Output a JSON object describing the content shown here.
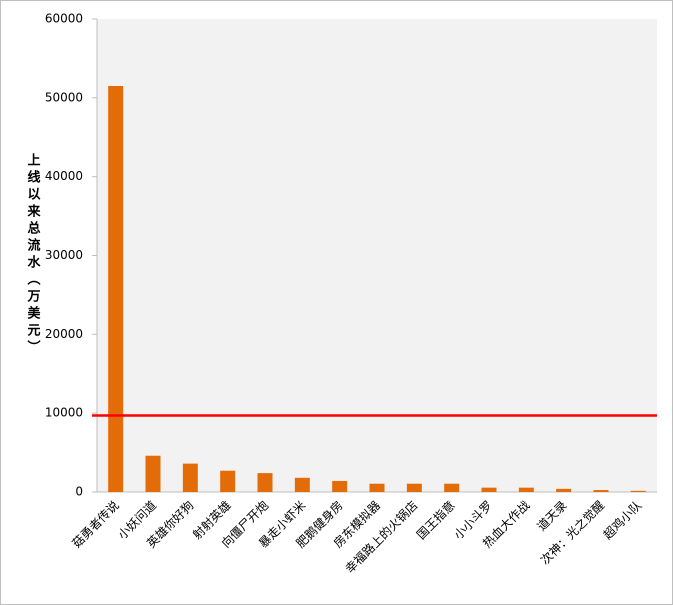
{
  "chart_data": {
    "type": "bar",
    "y_label": "上线以来总流水（万美元）",
    "categories": [
      "菇勇者传说",
      "小妖问道",
      "英雄你好狗",
      "射射英雄",
      "向僵尸开炮",
      "暴走小虾米",
      "肥鹅健身房",
      "房东模拟器",
      "幸福路上的火锅店",
      "国王指意",
      "小小斗罗",
      "热血大作战",
      "道天录",
      "次神：光之觉醒",
      "超鸡小队"
    ],
    "values": [
      51500,
      4600,
      3600,
      2700,
      2400,
      1800,
      1400,
      1050,
      1050,
      1050,
      550,
      550,
      400,
      250,
      150
    ],
    "color": "#e36c09",
    "ylim": [
      0,
      60000
    ],
    "yticks": [
      0,
      10000,
      20000,
      30000,
      40000,
      50000,
      60000
    ],
    "reference_line": 9700,
    "reference_line_color": "#ff0000",
    "grid": false
  }
}
